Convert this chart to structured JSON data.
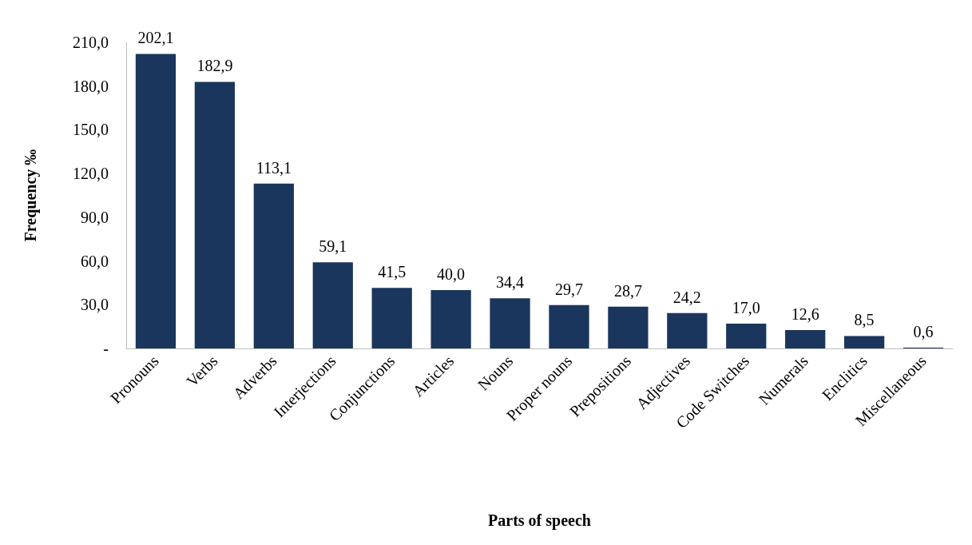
{
  "chart_data": {
    "type": "bar",
    "xlabel": "Parts of speech",
    "ylabel": "Frequency ‰",
    "categories": [
      "Pronouns",
      "Verbs",
      "Adverbs",
      "Interjections",
      "Conjunctions",
      "Articles",
      "Nouns",
      "Proper nouns",
      "Prepositions",
      "Adjectives",
      "Code Switches",
      "Numerals",
      "Enclitics",
      "Miscellaneous"
    ],
    "values": [
      202.1,
      182.9,
      113.1,
      59.1,
      41.5,
      40.0,
      34.4,
      29.7,
      28.7,
      24.2,
      17.0,
      12.6,
      8.5,
      0.6
    ],
    "value_labels": [
      "202,1",
      "182,9",
      "113,1",
      "59,1",
      "41,5",
      "40,0",
      "34,4",
      "29,7",
      "28,7",
      "24,2",
      "17,0",
      "12,6",
      "8,5",
      "0,6"
    ],
    "color": "#1b365d",
    "ylim": [
      0,
      210
    ],
    "yticks": [
      {
        "value": 0,
        "label": "-"
      },
      {
        "value": 30,
        "label": "30,0"
      },
      {
        "value": 60,
        "label": "60,0"
      },
      {
        "value": 90,
        "label": "90,0"
      },
      {
        "value": 120,
        "label": "120,0"
      },
      {
        "value": 150,
        "label": "150,0"
      },
      {
        "value": 180,
        "label": "180,0"
      },
      {
        "value": 210,
        "label": "210,0"
      }
    ],
    "grid": false
  }
}
